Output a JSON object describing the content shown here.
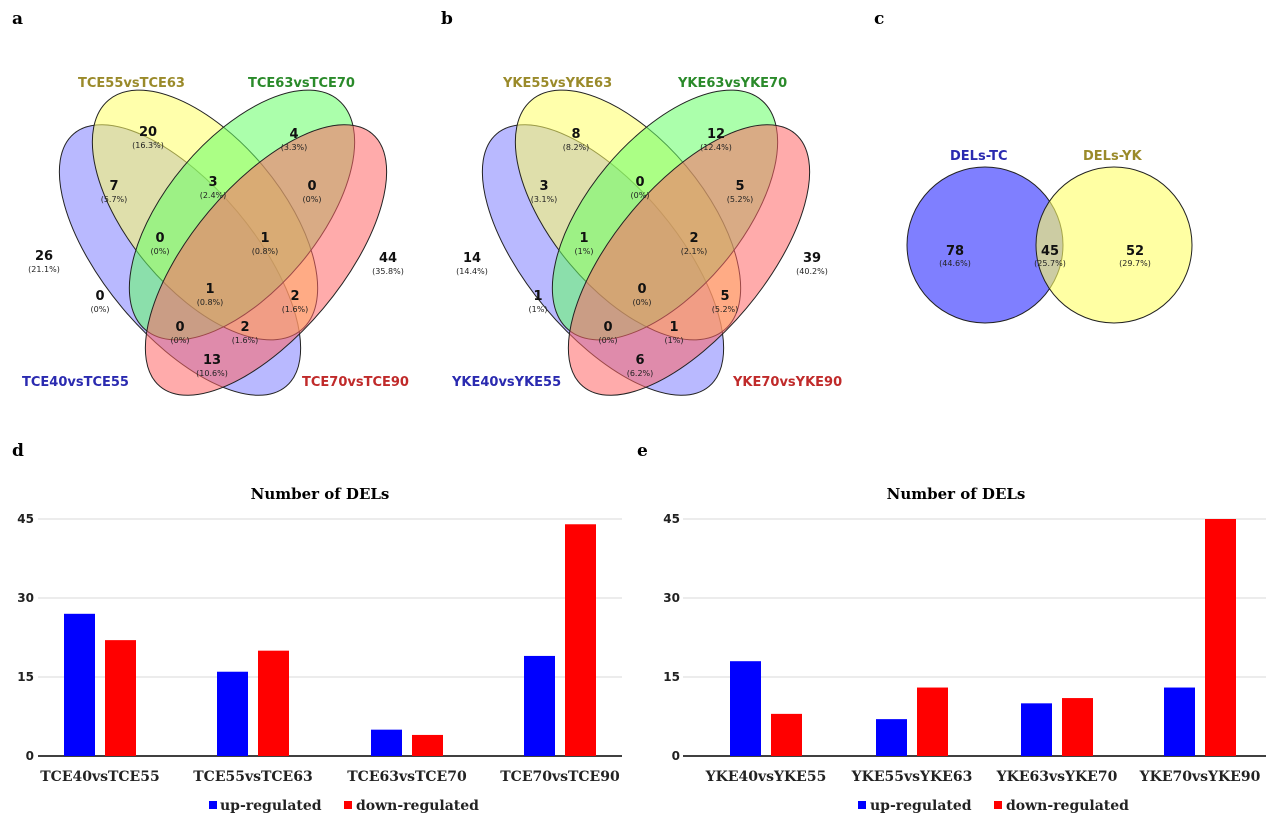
{
  "panels": [
    "a",
    "b",
    "c",
    "d",
    "e"
  ],
  "venn_a": {
    "sets": [
      "TCE40vsTCE55",
      "TCE55vsTCE63",
      "TCE63vsTCE70",
      "TCE70vsTCE90"
    ],
    "regions": [
      {
        "v": "26",
        "p": "(21.1%)"
      },
      {
        "v": "20",
        "p": "(16.3%)"
      },
      {
        "v": "4",
        "p": "(3.3%)"
      },
      {
        "v": "44",
        "p": "(35.8%)"
      },
      {
        "v": "7",
        "p": "(5.7%)"
      },
      {
        "v": "3",
        "p": "(2.4%)"
      },
      {
        "v": "0",
        "p": "(0%)"
      },
      {
        "v": "0",
        "p": "(0%)"
      },
      {
        "v": "1",
        "p": "(0.8%)"
      },
      {
        "v": "1",
        "p": "(0.8%)"
      },
      {
        "v": "0",
        "p": "(0%)"
      },
      {
        "v": "2",
        "p": "(1.6%)"
      },
      {
        "v": "0",
        "p": "(0%)"
      },
      {
        "v": "2",
        "p": "(1.6%)"
      },
      {
        "v": "13",
        "p": "(10.6%)"
      }
    ]
  },
  "venn_b": {
    "sets": [
      "YKE40vsYKE55",
      "YKE55vsYKE63",
      "YKE63vsYKE70",
      "YKE70vsYKE90"
    ],
    "regions": [
      {
        "v": "14",
        "p": "(14.4%)"
      },
      {
        "v": "8",
        "p": "(8.2%)"
      },
      {
        "v": "12",
        "p": "(12.4%)"
      },
      {
        "v": "39",
        "p": "(40.2%)"
      },
      {
        "v": "3",
        "p": "(3.1%)"
      },
      {
        "v": "0",
        "p": "(0%)"
      },
      {
        "v": "5",
        "p": "(5.2%)"
      },
      {
        "v": "1",
        "p": "(1%)"
      },
      {
        "v": "2",
        "p": "(2.1%)"
      },
      {
        "v": "0",
        "p": "(0%)"
      },
      {
        "v": "1",
        "p": "(1%)"
      },
      {
        "v": "5",
        "p": "(5.2%)"
      },
      {
        "v": "0",
        "p": "(0%)"
      },
      {
        "v": "1",
        "p": "(1%)"
      },
      {
        "v": "6",
        "p": "(6.2%)"
      }
    ]
  },
  "venn_c": {
    "sets": [
      "DELs-TC",
      "DELs-YK"
    ],
    "regions": [
      {
        "v": "78",
        "p": "(44.6%)"
      },
      {
        "v": "45",
        "p": "(25.7%)"
      },
      {
        "v": "52",
        "p": "(29.7%)"
      }
    ]
  },
  "colors": {
    "up": "#0000ff",
    "down": "#ff0000"
  },
  "chart_data": [
    {
      "type": "bar",
      "title": "Number of DELs",
      "categories": [
        "TCE40vsTCE55",
        "TCE55vsTCE63",
        "TCE63vsTCE70",
        "TCE70vsTCE90"
      ],
      "series": [
        {
          "name": "up-regulated",
          "values": [
            27,
            16,
            5,
            19
          ]
        },
        {
          "name": "down-regulated",
          "values": [
            22,
            20,
            4,
            44
          ]
        }
      ],
      "yticks": [
        "0",
        "15",
        "30",
        "45"
      ],
      "ylim": [
        0,
        45
      ],
      "legend": "bottom"
    },
    {
      "type": "bar",
      "title": "Number of DELs",
      "categories": [
        "YKE40vsYKE55",
        "YKE55vsYKE63",
        "YKE63vsYKE70",
        "YKE70vsYKE90"
      ],
      "series": [
        {
          "name": "up-regulated",
          "values": [
            18,
            7,
            10,
            13
          ]
        },
        {
          "name": "down-regulated",
          "values": [
            8,
            13,
            11,
            45
          ]
        }
      ],
      "yticks": [
        "0",
        "15",
        "30",
        "45"
      ],
      "ylim": [
        0,
        45
      ],
      "legend": "bottom"
    }
  ]
}
